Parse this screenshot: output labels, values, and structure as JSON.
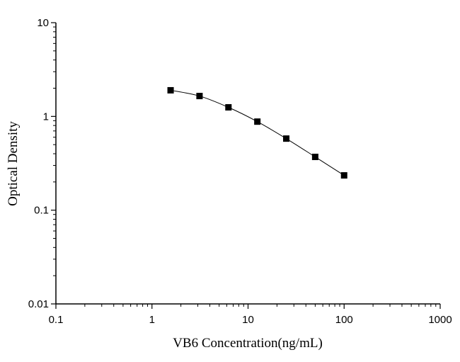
{
  "chart_data": {
    "type": "line",
    "title": "",
    "xlabel": "VB6 Concentration(ng/mL)",
    "ylabel": "Optical Density",
    "xscale": "log",
    "yscale": "log",
    "xlim": [
      0.1,
      1000
    ],
    "ylim": [
      0.01,
      10
    ],
    "xticks": [
      "0.1",
      "1",
      "10",
      "100",
      "1000"
    ],
    "yticks": [
      "0.01",
      "0.1",
      "1",
      "10"
    ],
    "grid": false,
    "marker": "square",
    "color": "#000000",
    "series": [
      {
        "x": [
          1.5625,
          3.125,
          6.25,
          12.5,
          25,
          50,
          100
        ],
        "y": [
          1.9,
          1.65,
          1.25,
          0.88,
          0.58,
          0.37,
          0.235
        ]
      }
    ]
  }
}
